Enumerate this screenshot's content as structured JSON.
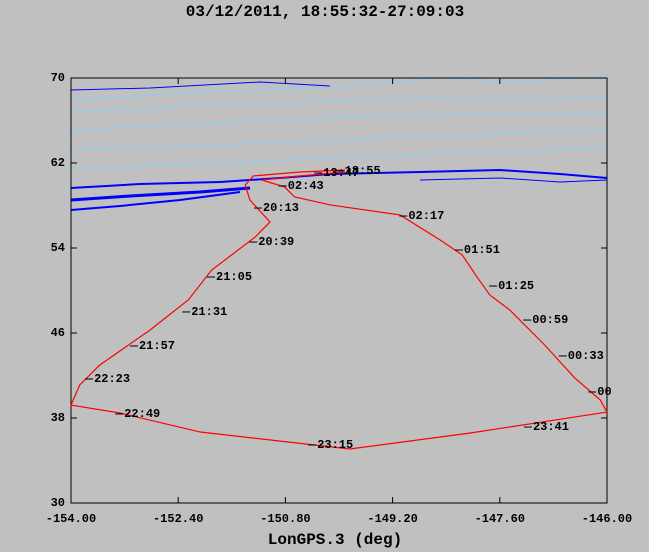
{
  "chart_data": {
    "type": "line",
    "title": "03/12/2011, 18:55:32-27:09:03",
    "x_label": "LonGPS.3 (deg)",
    "xlim": [
      -154,
      -146
    ],
    "xticks": [
      {
        "value": -154,
        "label": "-154.00"
      },
      {
        "value": -152.4,
        "label": "-152.40"
      },
      {
        "value": -150.8,
        "label": "-150.80"
      },
      {
        "value": -149.2,
        "label": "-149.20"
      },
      {
        "value": -147.6,
        "label": "-147.60"
      },
      {
        "value": -146,
        "label": "-146.00"
      }
    ],
    "ylim": [
      30,
      70
    ],
    "yticks": [
      30,
      38,
      46,
      54,
      62,
      70
    ],
    "x": [
      -149.91,
      -150.58,
      -151.28,
      -151.4,
      -151.33,
      -151.03,
      -151.25,
      -151.9,
      -152.25,
      -152.82,
      -153.57,
      -153.87,
      -154.0,
      -153.27,
      -152.07,
      -149.84,
      -148.04,
      -146.0,
      -146.1,
      -146.48,
      -146.93,
      -147.45,
      -147.75,
      -147.93,
      -148.16,
      -148.49,
      -149.09,
      -150.13,
      -150.66,
      -150.81,
      -151.15,
      -150.58,
      -149.91
    ],
    "series": [
      {
        "color": "#ff0000",
        "values": [
          61.34,
          61.15,
          60.78,
          59.93,
          58.52,
          56.45,
          55.04,
          51.93,
          49.11,
          46.28,
          42.99,
          41.11,
          39.22,
          38.47,
          36.68,
          35.08,
          36.59,
          38.56,
          39.69,
          41.76,
          44.87,
          48.16,
          49.58,
          51.18,
          53.34,
          54.75,
          57.11,
          58.05,
          58.8,
          59.74,
          60.4,
          60.78,
          61.15
        ]
      }
    ],
    "annotations": [
      {
        "text": "13:47",
        "x": -150.31,
        "y": 61.06
      },
      {
        "text": "18:55",
        "x": -149.99,
        "y": 61.25
      },
      {
        "text": "02:43",
        "x": -150.84,
        "y": 59.84
      },
      {
        "text": "20:13",
        "x": -151.21,
        "y": 57.76
      },
      {
        "text": "20:39",
        "x": -151.28,
        "y": 54.56
      },
      {
        "text": "21:05",
        "x": -151.91,
        "y": 51.27
      },
      {
        "text": "21:31",
        "x": -152.28,
        "y": 47.98
      },
      {
        "text": "21:57",
        "x": -153.06,
        "y": 44.78
      },
      {
        "text": "22:23",
        "x": -153.73,
        "y": 41.67
      },
      {
        "text": "22:49",
        "x": -153.28,
        "y": 38.38
      },
      {
        "text": "23:15",
        "x": -150.4,
        "y": 35.46
      },
      {
        "text": "23:41",
        "x": -147.18,
        "y": 37.15
      },
      {
        "text": "00",
        "x": -146.22,
        "y": 40.45
      },
      {
        "text": "00:33",
        "x": -146.66,
        "y": 43.84
      },
      {
        "text": "00:59",
        "x": -147.19,
        "y": 47.22
      },
      {
        "text": "01:25",
        "x": -147.7,
        "y": 50.42
      },
      {
        "text": "01:51",
        "x": -148.21,
        "y": 53.81
      },
      {
        "text": "02:17",
        "x": -149.04,
        "y": 57.01
      }
    ]
  }
}
